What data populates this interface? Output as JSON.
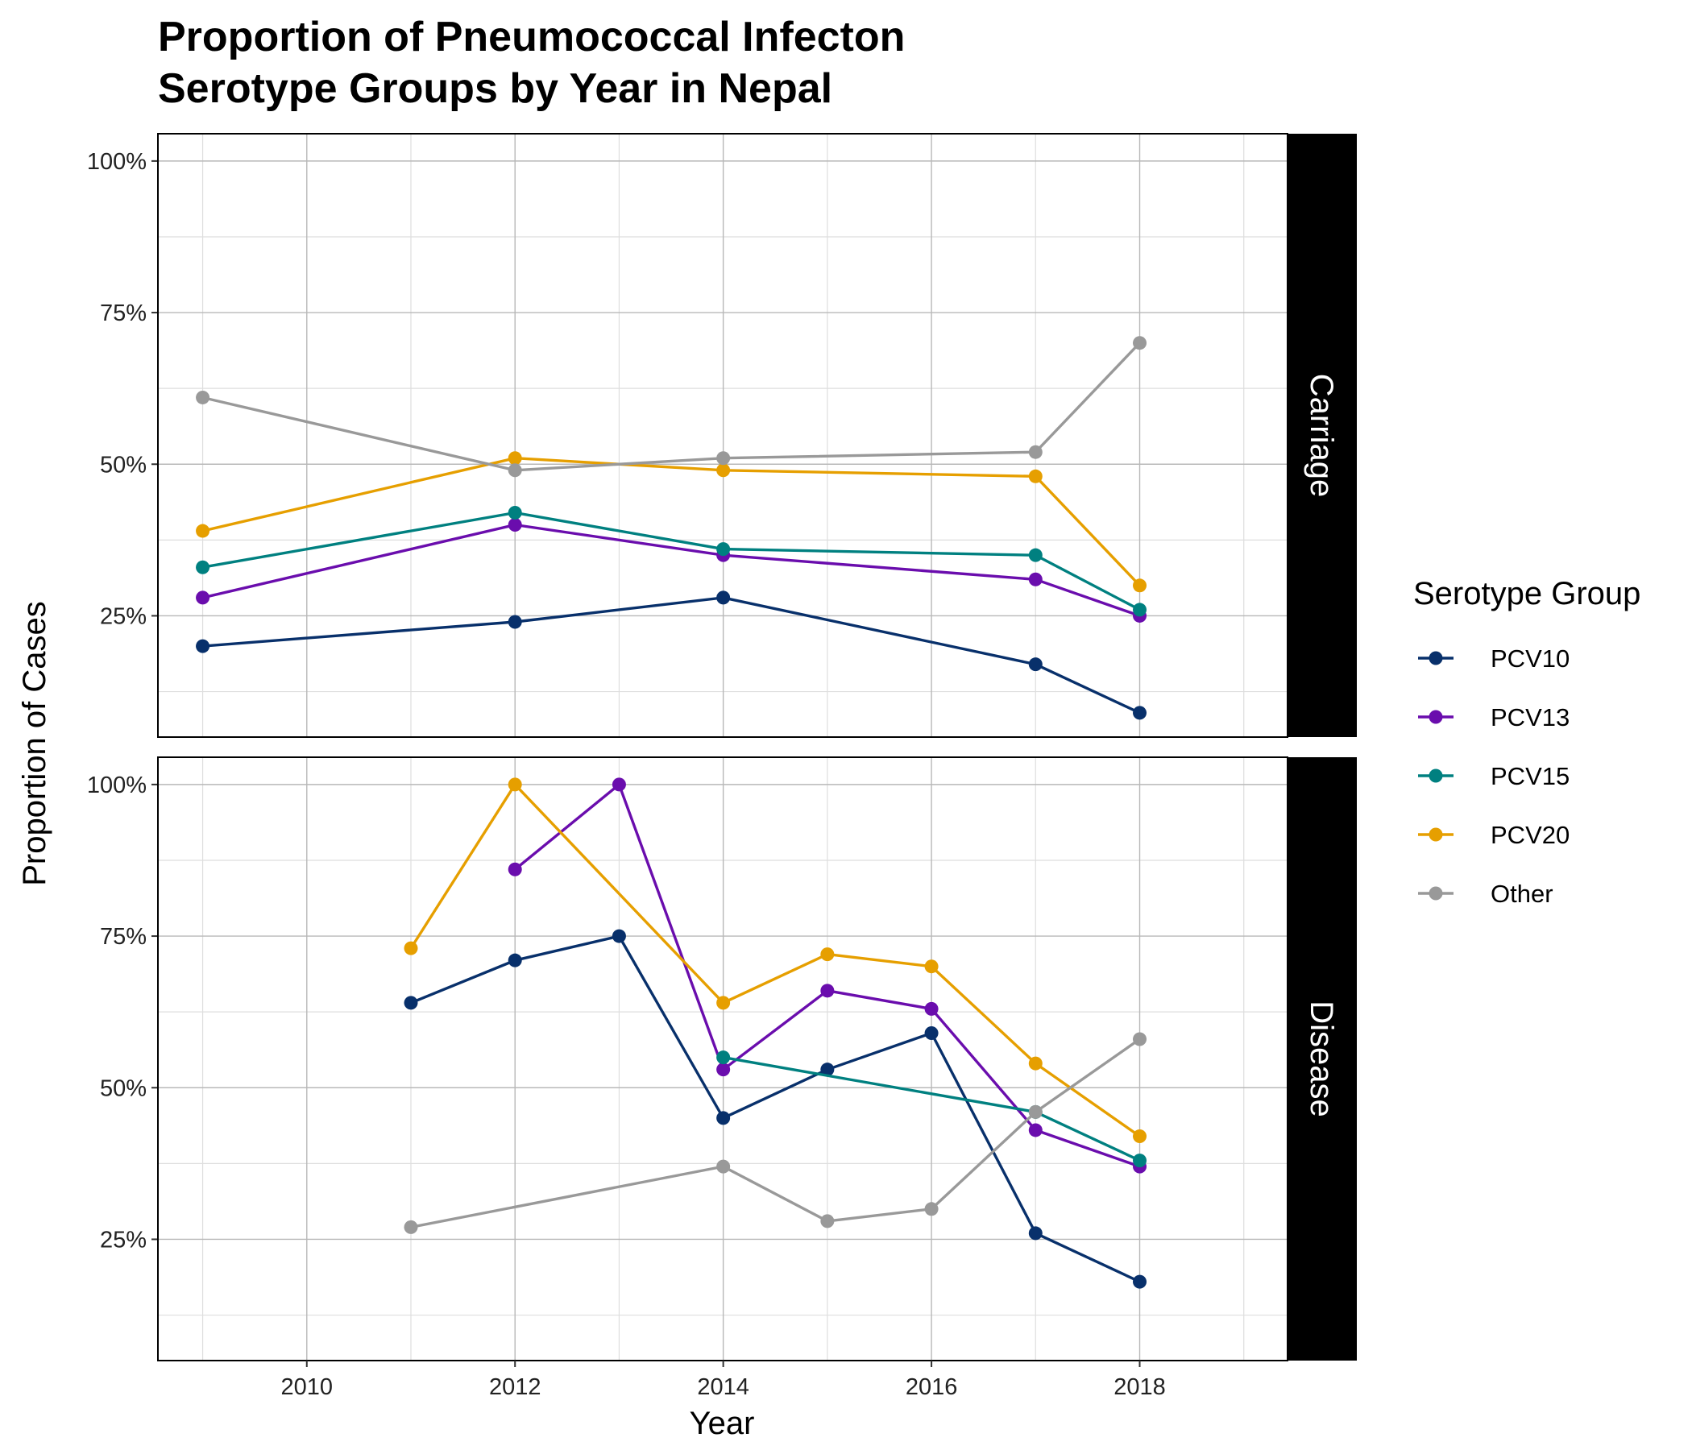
{
  "chart_data": {
    "type": "line",
    "title_lines": [
      "Proportion of Pneumococcal Infecton",
      "Serotype Groups by Year in Nepal"
    ],
    "xlabel": "Year",
    "ylabel": "Proportion of Cases",
    "xlim": [
      2008.57,
      2019.42
    ],
    "ylim": [
      0.05,
      1.045
    ],
    "x_ticks": [
      2010,
      2012,
      2014,
      2016,
      2018
    ],
    "x_tick_labels": [
      "2010",
      "2012",
      "2014",
      "2016",
      "2018"
    ],
    "y_ticks": [
      0.25,
      0.5,
      0.75,
      1.0
    ],
    "y_tick_labels": [
      "25%",
      "50%",
      "75%",
      "100%"
    ],
    "grid": true,
    "legend": {
      "title": "Serotype Group",
      "position": "right",
      "entries": [
        "PCV10",
        "PCV13",
        "PCV15",
        "PCV20",
        "Other"
      ]
    },
    "colors": {
      "PCV10": "#08306b",
      "PCV13": "#6a0dad",
      "PCV15": "#008080",
      "PCV20": "#e69f00",
      "Other": "#999999"
    },
    "panels": [
      {
        "label": "Carriage",
        "series": [
          {
            "name": "PCV10",
            "x": [
              2009,
              2012,
              2014,
              2017,
              2018
            ],
            "y": [
              0.2,
              0.24,
              0.28,
              0.17,
              0.09
            ]
          },
          {
            "name": "PCV13",
            "x": [
              2009,
              2012,
              2014,
              2017,
              2018
            ],
            "y": [
              0.28,
              0.4,
              0.35,
              0.31,
              0.25
            ]
          },
          {
            "name": "PCV15",
            "x": [
              2009,
              2012,
              2014,
              2017,
              2018
            ],
            "y": [
              0.33,
              0.42,
              0.36,
              0.35,
              0.26
            ]
          },
          {
            "name": "PCV20",
            "x": [
              2009,
              2012,
              2014,
              2017,
              2018
            ],
            "y": [
              0.39,
              0.51,
              0.49,
              0.48,
              0.3
            ]
          },
          {
            "name": "Other",
            "x": [
              2009,
              2012,
              2014,
              2017,
              2018
            ],
            "y": [
              0.61,
              0.49,
              0.51,
              0.52,
              0.7
            ]
          }
        ]
      },
      {
        "label": "Disease",
        "series": [
          {
            "name": "PCV10",
            "x": [
              2011,
              2012,
              2013,
              2014,
              2015,
              2016,
              2017,
              2018
            ],
            "y": [
              0.64,
              0.71,
              0.75,
              0.45,
              0.53,
              0.59,
              0.26,
              0.18
            ]
          },
          {
            "name": "PCV13",
            "x": [
              2012,
              2013,
              2014,
              2015,
              2016,
              2017,
              2018
            ],
            "y": [
              0.86,
              1.0,
              0.53,
              0.66,
              0.63,
              0.43,
              0.37
            ]
          },
          {
            "name": "PCV15",
            "x": [
              2014,
              2017,
              2018
            ],
            "y": [
              0.55,
              0.46,
              0.38
            ]
          },
          {
            "name": "PCV20",
            "x": [
              2011,
              2012,
              2014,
              2015,
              2016,
              2017,
              2018
            ],
            "y": [
              0.73,
              1.0,
              0.64,
              0.72,
              0.7,
              0.54,
              0.42
            ]
          },
          {
            "name": "Other",
            "x": [
              2011,
              2014,
              2015,
              2016,
              2017,
              2018
            ],
            "y": [
              0.27,
              0.37,
              0.28,
              0.3,
              0.46,
              0.58
            ]
          }
        ]
      }
    ]
  }
}
